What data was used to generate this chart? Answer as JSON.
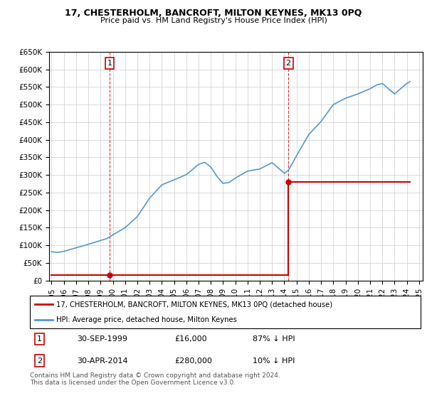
{
  "title": "17, CHESTERHOLM, BANCROFT, MILTON KEYNES, MK13 0PQ",
  "subtitle": "Price paid vs. HM Land Registry's House Price Index (HPI)",
  "ylim": [
    0,
    650000
  ],
  "yticks": [
    0,
    50000,
    100000,
    150000,
    200000,
    250000,
    300000,
    350000,
    400000,
    450000,
    500000,
    550000,
    600000,
    650000
  ],
  "ytick_labels": [
    "£0",
    "£50K",
    "£100K",
    "£150K",
    "£200K",
    "£250K",
    "£300K",
    "£350K",
    "£400K",
    "£450K",
    "£500K",
    "£550K",
    "£600K",
    "£650K"
  ],
  "sale1_year": 1999.75,
  "sale1_price": 16000,
  "sale2_year": 2014.33,
  "sale2_price": 280000,
  "sale1_label": "1",
  "sale2_label": "2",
  "legend_line1": "17, CHESTERHOLM, BANCROFT, MILTON KEYNES, MK13 0PQ (detached house)",
  "legend_line2": "HPI: Average price, detached house, Milton Keynes",
  "red_color": "#cc0000",
  "blue_color": "#5599cc",
  "table_row1": [
    "1",
    "30-SEP-1999",
    "£16,000",
    "87% ↓ HPI"
  ],
  "table_row2": [
    "2",
    "30-APR-2014",
    "£280,000",
    "10% ↓ HPI"
  ],
  "footer": "Contains HM Land Registry data © Crown copyright and database right 2024.\nThis data is licensed under the Open Government Licence v3.0.",
  "xlim": [
    1994.8,
    2025.3
  ],
  "xtick_years": [
    1995,
    1996,
    1997,
    1998,
    1999,
    2000,
    2001,
    2002,
    2003,
    2004,
    2005,
    2006,
    2007,
    2008,
    2009,
    2010,
    2011,
    2012,
    2013,
    2014,
    2015,
    2016,
    2017,
    2018,
    2019,
    2020,
    2021,
    2022,
    2023,
    2024,
    2025
  ]
}
